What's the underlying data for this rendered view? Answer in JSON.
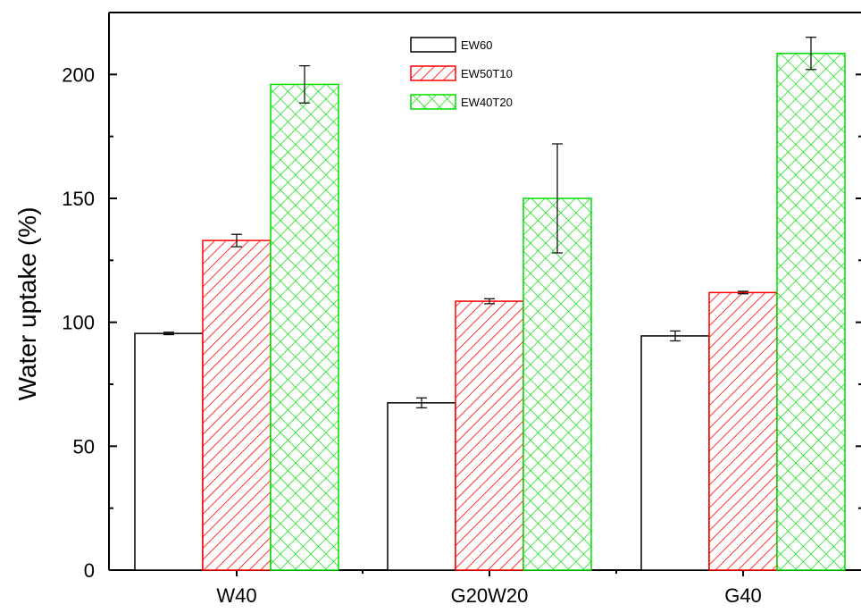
{
  "chart_data": {
    "type": "bar",
    "categories": [
      "W40",
      "G20W20",
      "G40"
    ],
    "series": [
      {
        "name": "EW60",
        "values": [
          95.5,
          67.5,
          94.5
        ],
        "errors": [
          0.5,
          2.0,
          2.0
        ],
        "color": "#000000",
        "pattern": "none"
      },
      {
        "name": "EW50T10",
        "values": [
          133,
          108.5,
          112
        ],
        "errors": [
          2.5,
          1.0,
          0.5
        ],
        "color": "#ff0000",
        "pattern": "diagonal"
      },
      {
        "name": "EW40T20",
        "values": [
          196,
          150,
          208.5
        ],
        "errors": [
          7.5,
          22.0,
          6.5
        ],
        "color": "#00dd00",
        "pattern": "crosshatch"
      }
    ],
    "ylabel": "Water uptake (%)",
    "xlabel": "",
    "ylim": [
      0,
      225
    ],
    "yticks": [
      0,
      50,
      100,
      150,
      200
    ],
    "grid": false,
    "legend_position": "top-center"
  }
}
